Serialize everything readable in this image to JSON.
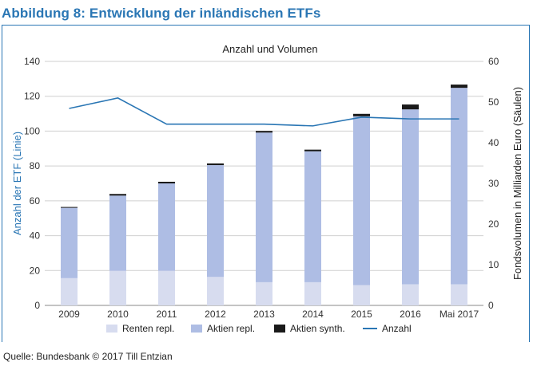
{
  "figure": {
    "title": "Abbildung 8: Entwicklung der inländischen ETFs",
    "source": "Quelle: Bundesbank © 2017 Till Entzian"
  },
  "colors": {
    "brand_blue": "#2a76b4",
    "renten": "#d7dcef",
    "aktien": "#aebde4",
    "synth": "#1a1a1a",
    "line": "#2a76b4",
    "grid": "#cfcfcf"
  },
  "chart_data": {
    "type": "bar",
    "title": "Anzahl und Volumen",
    "categories": [
      "2009",
      "2010",
      "2011",
      "2012",
      "2013",
      "2014",
      "2015",
      "2016",
      "Mai 2017"
    ],
    "ylabel_left": "Anzahl der ETF (Linie)",
    "ylabel_right": "Fondsvolumen in Milliarden Euro (Säulen)",
    "ylim_left": [
      0,
      140
    ],
    "yticks_left": [
      "0",
      "20",
      "40",
      "60",
      "80",
      "100",
      "120",
      "140"
    ],
    "ylim_right": [
      0,
      60
    ],
    "yticks_right": [
      "0",
      "10",
      "20",
      "30",
      "40",
      "50",
      "60"
    ],
    "grid": true,
    "legend_position": "bottom",
    "bar_series": [
      {
        "name": "Renten repl.",
        "color_key": "renten",
        "values": [
          6.7,
          8.5,
          8.5,
          7.0,
          5.7,
          5.7,
          5.0,
          5.2,
          5.2
        ]
      },
      {
        "name": "Aktien repl.",
        "color_key": "aktien",
        "values": [
          17.3,
          18.5,
          21.5,
          27.5,
          36.8,
          32.2,
          41.5,
          43.0,
          48.3
        ]
      },
      {
        "name": "Aktien synth.",
        "color_key": "synth",
        "values": [
          0.2,
          0.4,
          0.4,
          0.4,
          0.4,
          0.4,
          0.6,
          1.2,
          0.8
        ]
      }
    ],
    "line_series": {
      "name": "Anzahl",
      "color_key": "line",
      "values": [
        113,
        119,
        104,
        104,
        104,
        103,
        108,
        107,
        107
      ]
    }
  }
}
